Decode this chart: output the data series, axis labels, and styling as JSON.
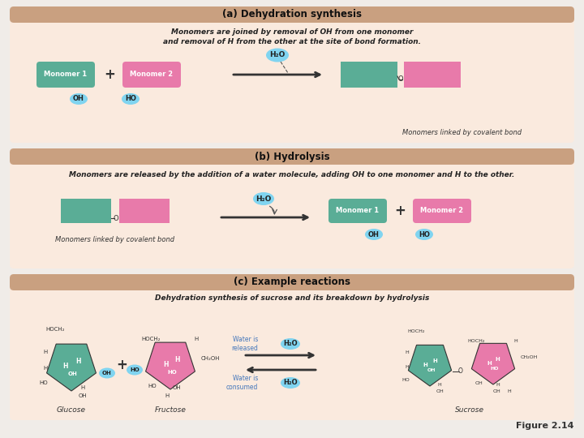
{
  "bg_outer": "#f0ece8",
  "bg_panel": "#faeade",
  "bg_header": "#c9a080",
  "teal": "#5aad96",
  "pink": "#e87aaa",
  "cyan_bubble": "#80d4f0",
  "panel_a_title": "(a) Dehydration synthesis",
  "panel_b_title": "(b) Hydrolysis",
  "panel_c_title": "(c) Example reactions",
  "panel_a_desc1": "Monomers are joined by removal of OH from one monomer",
  "panel_a_desc2": "and removal of H from the other at the site of bond formation.",
  "panel_b_desc": "Monomers are released by the addition of a water molecule, adding OH to one monomer and H to the other.",
  "panel_c_subtitle": "Dehydration synthesis of sucrose and its breakdown by hydrolysis",
  "monomer1_label": "Monomer 1",
  "monomer2_label": "Monomer 2",
  "oh_label": "OH",
  "ho_label": "HO",
  "h2o_label": "H₂O",
  "covalent_label": "Monomers linked by covalent bond",
  "glucose_label": "Glucose",
  "fructose_label": "Fructose",
  "sucrose_label": "Sucrose",
  "water_released": "Water is\nreleased",
  "water_consumed": "Water is\nconsumed",
  "figure_label": "Figure 2.14",
  "bond_o": "O"
}
